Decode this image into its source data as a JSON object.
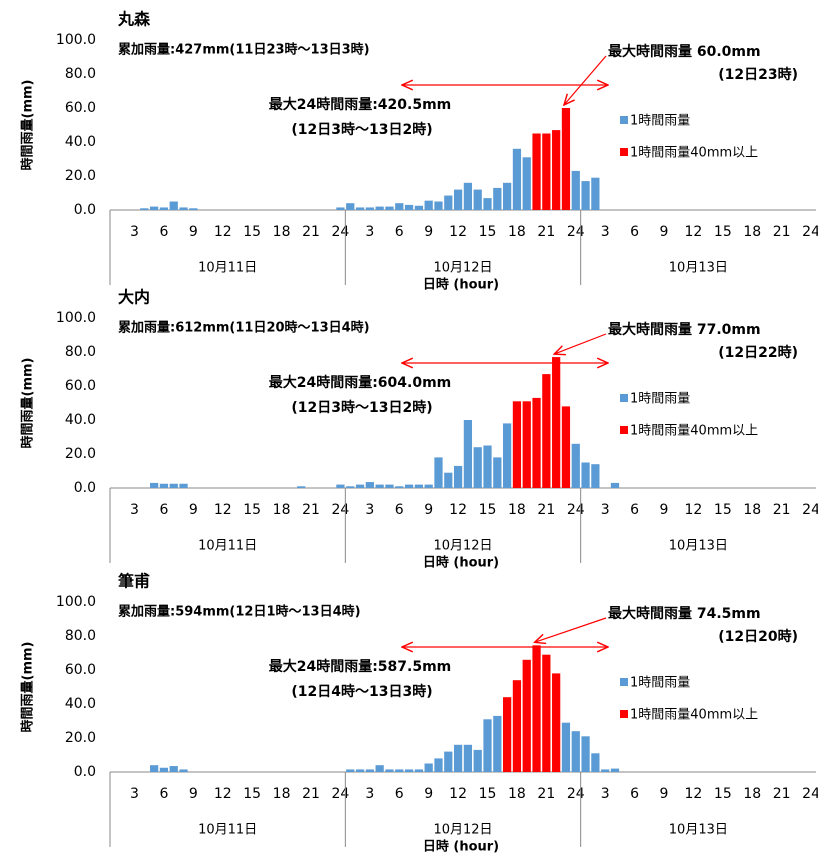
{
  "chart_data": [
    {
      "type": "bar",
      "title": "丸森",
      "categories": [
        null,
        null,
        "3",
        null,
        null,
        "6",
        null,
        null,
        "9",
        null,
        null,
        "12",
        null,
        null,
        "15",
        null,
        null,
        "18",
        null,
        null,
        "21",
        null,
        null,
        "24",
        null,
        null,
        "3",
        null,
        null,
        "6",
        null,
        null,
        "9",
        null,
        null,
        "12",
        null,
        null,
        "15",
        null,
        null,
        "18",
        null,
        null,
        "21",
        null,
        null,
        "24",
        null,
        null,
        "3",
        null,
        null,
        "6",
        null,
        null,
        "9",
        null,
        null,
        "12",
        null,
        null,
        "15",
        null,
        null,
        "18",
        null,
        null,
        "21",
        null,
        null,
        "24"
      ],
      "groups": [
        "10月11日",
        "10月12日",
        "10月13日"
      ],
      "series": [
        {
          "name": "1時間雨量",
          "color": "#5b9bd5",
          "values": [
            null,
            null,
            null,
            1,
            2,
            1.5,
            5,
            1.5,
            1,
            null,
            null,
            null,
            null,
            null,
            null,
            null,
            null,
            null,
            null,
            null,
            null,
            null,
            null,
            1.5,
            4,
            1.5,
            1.5,
            2,
            2,
            4,
            3,
            2.5,
            5.5,
            5,
            8.5,
            12,
            16,
            12,
            7,
            13,
            16,
            36,
            31,
            null,
            null,
            null,
            null,
            23,
            17,
            19,
            null,
            null,
            null,
            null,
            null,
            null,
            null,
            null,
            null,
            null,
            null,
            null,
            null,
            null,
            null,
            null,
            null,
            null,
            null,
            null,
            null,
            null
          ]
        },
        {
          "name": "1時間雨量40mm以上",
          "color": "#ff0000",
          "values": [
            null,
            null,
            null,
            null,
            null,
            null,
            null,
            null,
            null,
            null,
            null,
            null,
            null,
            null,
            null,
            null,
            null,
            null,
            null,
            null,
            null,
            null,
            null,
            null,
            null,
            null,
            null,
            null,
            null,
            null,
            null,
            null,
            null,
            null,
            null,
            null,
            null,
            null,
            null,
            null,
            null,
            null,
            null,
            45,
            45,
            47,
            60,
            null,
            null,
            null,
            null,
            null,
            null,
            null,
            null,
            null,
            null,
            null,
            null,
            null,
            null,
            null,
            null,
            null,
            null,
            null,
            null,
            null,
            null,
            null,
            null,
            null
          ]
        }
      ],
      "ylim": [
        0,
        100
      ],
      "yticks": [
        {
          "value": 0,
          "label": "0.0"
        },
        {
          "value": 20,
          "label": "20.0"
        },
        {
          "value": 40,
          "label": "40.0"
        },
        {
          "value": 60,
          "label": "60.0"
        },
        {
          "value": 80,
          "label": "80.0"
        },
        {
          "value": 100,
          "label": "100.0"
        }
      ],
      "ylabel": "時間雨量(mm)",
      "xlabel": "日時 (hour)",
      "grid": false,
      "annotations": {
        "total": "累加雨量:427mm(11日23時～13日3時)",
        "max_hour": "最大時間雨量 60.0mm",
        "max_hour_time": "(12日23時)",
        "max_24h": "最大24時間雨量:420.5mm",
        "max_24h_period": "(12日3時～13日2時)"
      }
    },
    {
      "type": "bar",
      "title": "大内",
      "categories": [
        null,
        null,
        "3",
        null,
        null,
        "6",
        null,
        null,
        "9",
        null,
        null,
        "12",
        null,
        null,
        "15",
        null,
        null,
        "18",
        null,
        null,
        "21",
        null,
        null,
        "24",
        null,
        null,
        "3",
        null,
        null,
        "6",
        null,
        null,
        "9",
        null,
        null,
        "12",
        null,
        null,
        "15",
        null,
        null,
        "18",
        null,
        null,
        "21",
        null,
        null,
        "24",
        null,
        null,
        "3",
        null,
        null,
        "6",
        null,
        null,
        "9",
        null,
        null,
        "12",
        null,
        null,
        "15",
        null,
        null,
        "18",
        null,
        null,
        "21",
        null,
        null,
        "24"
      ],
      "groups": [
        "10月11日",
        "10月12日",
        "10月13日"
      ],
      "series": [
        {
          "name": "1時間雨量",
          "color": "#5b9bd5",
          "values": [
            null,
            null,
            null,
            null,
            3,
            2.5,
            2.5,
            2.5,
            null,
            null,
            null,
            null,
            null,
            null,
            null,
            null,
            null,
            null,
            null,
            1,
            null,
            null,
            null,
            2,
            1,
            2,
            3.5,
            2,
            2,
            1,
            2,
            2,
            2,
            18,
            9,
            13,
            40,
            24,
            25,
            18,
            38,
            null,
            null,
            null,
            null,
            null,
            null,
            26,
            15,
            14,
            null,
            3,
            null,
            null,
            null,
            null,
            null,
            null,
            null,
            null,
            null,
            null,
            null,
            null,
            null,
            null,
            null,
            null,
            null,
            null,
            null,
            null
          ]
        },
        {
          "name": "1時間雨量40mm以上",
          "color": "#ff0000",
          "values": [
            null,
            null,
            null,
            null,
            null,
            null,
            null,
            null,
            null,
            null,
            null,
            null,
            null,
            null,
            null,
            null,
            null,
            null,
            null,
            null,
            null,
            null,
            null,
            null,
            null,
            null,
            null,
            null,
            null,
            null,
            null,
            null,
            null,
            null,
            null,
            null,
            null,
            null,
            null,
            null,
            null,
            51,
            51,
            53,
            67,
            77,
            48,
            null,
            null,
            null,
            null,
            null,
            null,
            null,
            null,
            null,
            null,
            null,
            null,
            null,
            null,
            null,
            null,
            null,
            null,
            null,
            null,
            null,
            null,
            null,
            null,
            null
          ]
        }
      ],
      "ylim": [
        0,
        100
      ],
      "yticks": [
        {
          "value": 0,
          "label": "0.0"
        },
        {
          "value": 20,
          "label": "20.0"
        },
        {
          "value": 40,
          "label": "40.0"
        },
        {
          "value": 60,
          "label": "60.0"
        },
        {
          "value": 80,
          "label": "80.0"
        },
        {
          "value": 100,
          "label": "100.0"
        }
      ],
      "ylabel": "時間雨量(mm)",
      "xlabel": "日時 (hour)",
      "grid": false,
      "annotations": {
        "total": "累加雨量:612mm(11日20時～13日4時)",
        "max_hour": "最大時間雨量 77.0mm",
        "max_hour_time": "(12日22時)",
        "max_24h": "最大24時間雨量:604.0mm",
        "max_24h_period": "(12日3時～13日2時)"
      }
    },
    {
      "type": "bar",
      "title": "筆甫",
      "categories": [
        null,
        null,
        "3",
        null,
        null,
        "6",
        null,
        null,
        "9",
        null,
        null,
        "12",
        null,
        null,
        "15",
        null,
        null,
        "18",
        null,
        null,
        "21",
        null,
        null,
        "24",
        null,
        null,
        "3",
        null,
        null,
        "6",
        null,
        null,
        "9",
        null,
        null,
        "12",
        null,
        null,
        "15",
        null,
        null,
        "18",
        null,
        null,
        "21",
        null,
        null,
        "24",
        null,
        null,
        "3",
        null,
        null,
        "6",
        null,
        null,
        "9",
        null,
        null,
        "12",
        null,
        null,
        "15",
        null,
        null,
        "18",
        null,
        null,
        "21",
        null,
        null,
        "24"
      ],
      "groups": [
        "10月11日",
        "10月12日",
        "10月13日"
      ],
      "series": [
        {
          "name": "1時間雨量",
          "color": "#5b9bd5",
          "values": [
            null,
            null,
            null,
            null,
            4,
            2.5,
            3.5,
            1.5,
            null,
            null,
            null,
            null,
            null,
            null,
            null,
            null,
            null,
            null,
            null,
            null,
            null,
            null,
            null,
            null,
            1.5,
            1.5,
            1.5,
            4,
            1.5,
            1.5,
            1.5,
            1.5,
            5,
            8,
            12,
            16,
            16,
            13,
            31,
            33,
            null,
            null,
            null,
            null,
            null,
            null,
            29,
            24,
            21,
            11,
            1.5,
            2,
            null,
            null,
            null,
            null,
            null,
            null,
            null,
            null,
            null,
            null,
            null,
            null,
            null,
            null,
            null,
            null,
            null,
            null,
            null,
            null
          ]
        },
        {
          "name": "1時間雨量40mm以上",
          "color": "#ff0000",
          "values": [
            null,
            null,
            null,
            null,
            null,
            null,
            null,
            null,
            null,
            null,
            null,
            null,
            null,
            null,
            null,
            null,
            null,
            null,
            null,
            null,
            null,
            null,
            null,
            null,
            null,
            null,
            null,
            null,
            null,
            null,
            null,
            null,
            null,
            null,
            null,
            null,
            null,
            null,
            null,
            null,
            44,
            54,
            66,
            74.5,
            69,
            58,
            null,
            null,
            null,
            null,
            null,
            null,
            null,
            null,
            null,
            null,
            null,
            null,
            null,
            null,
            null,
            null,
            null,
            null,
            null,
            null,
            null,
            null,
            null,
            null,
            null,
            null
          ]
        }
      ],
      "ylim": [
        0,
        100
      ],
      "yticks": [
        {
          "value": 0,
          "label": "0.0"
        },
        {
          "value": 20,
          "label": "20.0"
        },
        {
          "value": 40,
          "label": "40.0"
        },
        {
          "value": 60,
          "label": "60.0"
        },
        {
          "value": 80,
          "label": "80.0"
        },
        {
          "value": 100,
          "label": "100.0"
        }
      ],
      "ylabel": "時間雨量(mm)",
      "xlabel": "日時 (hour)",
      "grid": false,
      "annotations": {
        "total": "累加雨量:594mm(12日1時～13日4時)",
        "max_hour": "最大時間雨量 74.5mm",
        "max_hour_time": "(12日20時)",
        "max_24h": "最大24時間雨量:587.5mm",
        "max_24h_period": "(12日4時～13日3時)"
      }
    }
  ]
}
